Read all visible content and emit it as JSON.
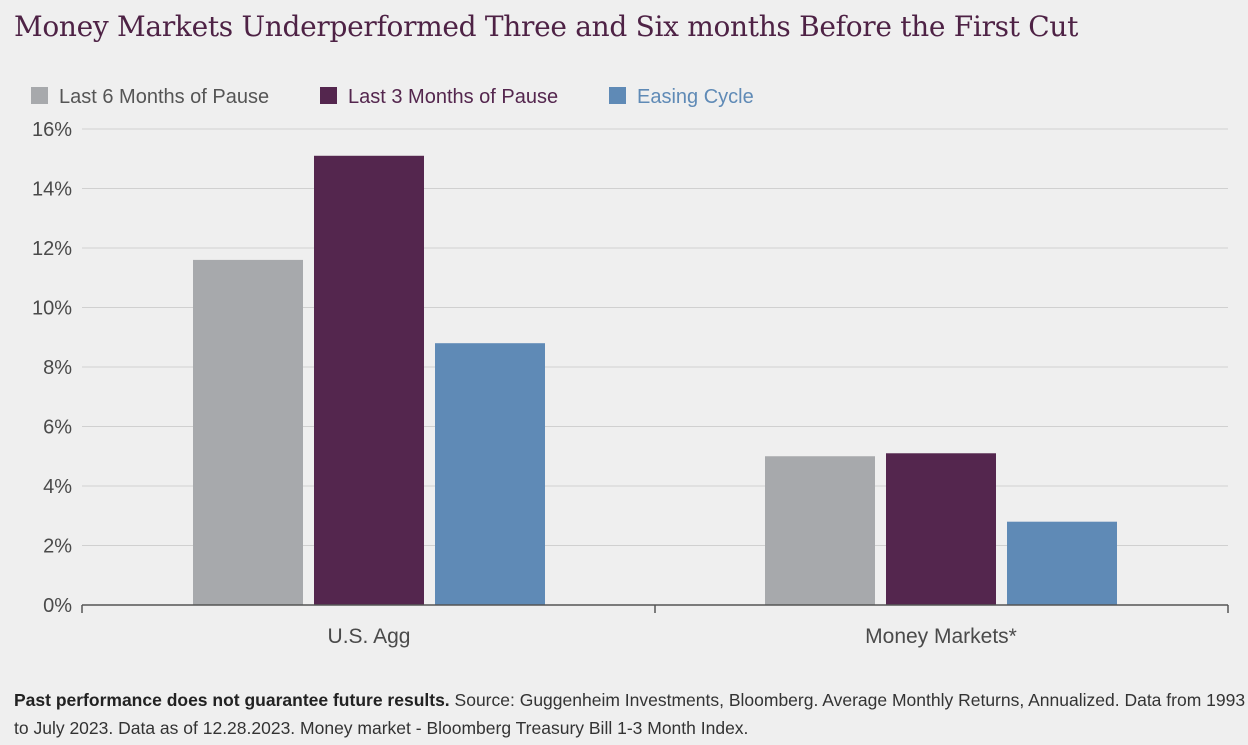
{
  "title": "Money Markets Underperformed Three and Six months Before the First Cut",
  "footnote": {
    "bold": "Past performance does not guarantee future results.",
    "text": " Source: Guggenheim Investments, Bloomberg. Average Monthly Returns, Annualized. Data from 1993 to July 2023. Data as of 12.28.2023. Money market - Bloomberg Treasury Bill 1-3 Month Index."
  },
  "colors": {
    "last6": "#a7a9ac",
    "last3": "#54264e",
    "easing": "#5f8ab6",
    "grid": "#d0d0d0",
    "axis": "#555555",
    "text": "#4a4a4a"
  },
  "chart_data": {
    "type": "bar",
    "categories": [
      "U.S. Agg",
      "Money Markets*"
    ],
    "series": [
      {
        "name": "Last 6 Months of Pause",
        "values": [
          11.6,
          5.0
        ],
        "color": "#a7a9ac"
      },
      {
        "name": "Last 3 Months of Pause",
        "values": [
          15.1,
          5.1
        ],
        "color": "#54264e"
      },
      {
        "name": "Easing Cycle",
        "values": [
          8.8,
          2.8
        ],
        "color": "#5f8ab6"
      }
    ],
    "ylim": [
      0,
      16
    ],
    "yticks": [
      "0%",
      "2%",
      "4%",
      "6%",
      "8%",
      "10%",
      "12%",
      "14%",
      "16%"
    ],
    "ytick_values": [
      0,
      2,
      4,
      6,
      8,
      10,
      12,
      14,
      16
    ],
    "xlabel": "",
    "ylabel": "",
    "grid": true,
    "legend": "top-left"
  }
}
